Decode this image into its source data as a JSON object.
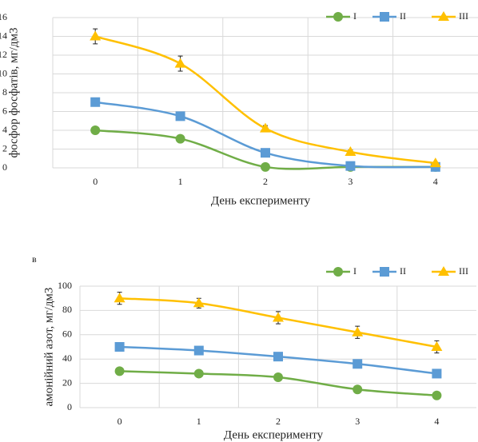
{
  "chart_data": [
    {
      "type": "line",
      "panel_label": null,
      "x_label": "День експерименту",
      "y_label": "фосфор фосфатів, мг/дм3",
      "categories": [
        "0",
        "1",
        "2",
        "3",
        "4"
      ],
      "ylim": [
        0,
        16
      ],
      "yticks": [
        0,
        2,
        4,
        6,
        8,
        10,
        12,
        14,
        16
      ],
      "grid": true,
      "series": [
        {
          "name": "I",
          "color": "#70ad47",
          "marker": "circle",
          "values": [
            4.0,
            3.1,
            0.1,
            0.1,
            0.1
          ]
        },
        {
          "name": "II",
          "color": "#5b9bd5",
          "marker": "square",
          "values": [
            7.0,
            5.5,
            1.6,
            0.2,
            0.1
          ]
        },
        {
          "name": "III",
          "color": "#ffc000",
          "marker": "triangle",
          "values": [
            14.0,
            11.1,
            4.2,
            1.7,
            0.5
          ],
          "errors": [
            0.8,
            0.8,
            0.3,
            0.2,
            0.1
          ]
        }
      ]
    },
    {
      "type": "line",
      "panel_label": "в",
      "x_label": "День експерименту",
      "y_label": "амонійний азот, мг/дм3",
      "categories": [
        "0",
        "1",
        "2",
        "3",
        "4"
      ],
      "ylim": [
        0,
        100
      ],
      "yticks": [
        0,
        20,
        40,
        60,
        80,
        100
      ],
      "grid": true,
      "series": [
        {
          "name": "I",
          "color": "#70ad47",
          "marker": "circle",
          "values": [
            30,
            28,
            25,
            15,
            10
          ]
        },
        {
          "name": "II",
          "color": "#5b9bd5",
          "marker": "square",
          "values": [
            50,
            47,
            42,
            36,
            28
          ]
        },
        {
          "name": "III",
          "color": "#ffc000",
          "marker": "triangle",
          "values": [
            90,
            86,
            74,
            62,
            50
          ],
          "errors": [
            5,
            4,
            5,
            5,
            5
          ]
        }
      ]
    }
  ]
}
